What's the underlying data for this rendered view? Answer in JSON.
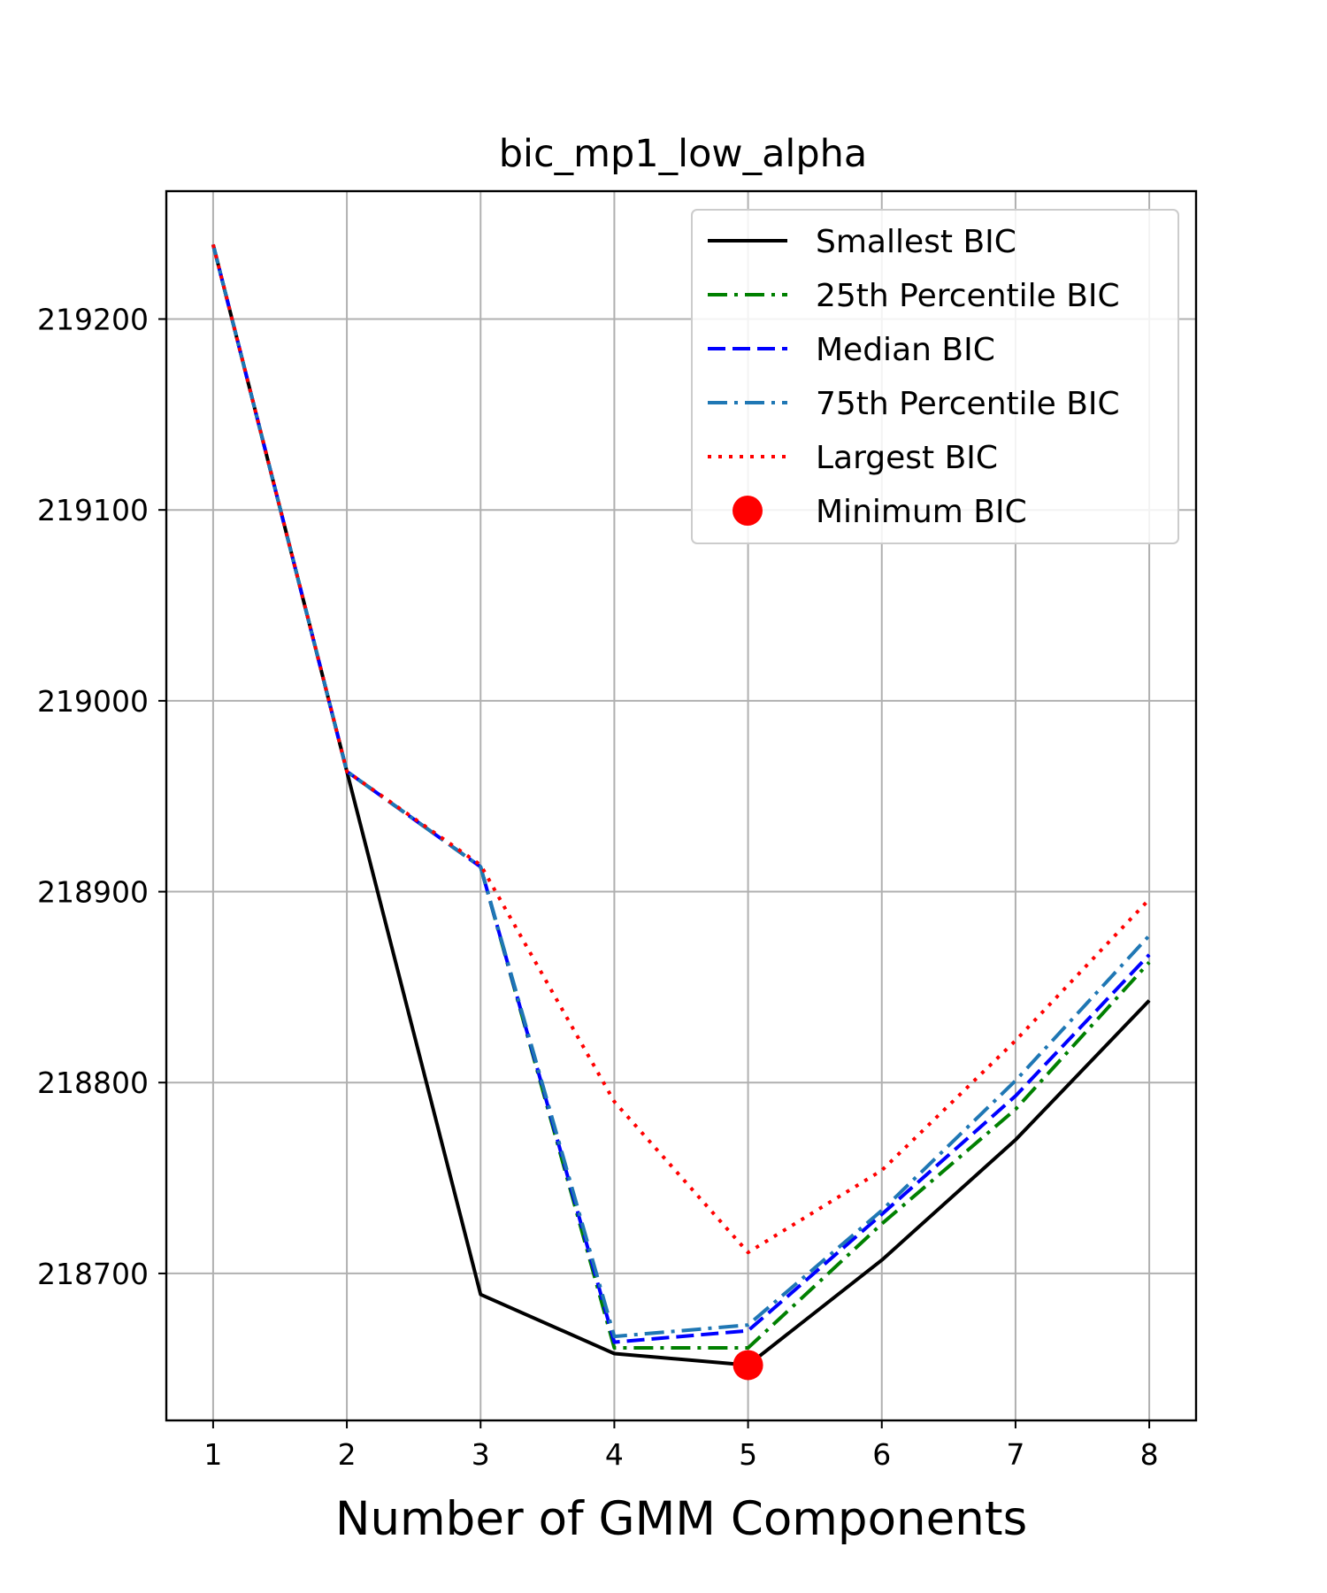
{
  "chart_data": {
    "type": "line",
    "title": "bic_mp1_low_alpha",
    "xlabel": "Number of GMM Components",
    "ylabel": "",
    "x": [
      1,
      2,
      3,
      4,
      5,
      6,
      7,
      8
    ],
    "xticks": [
      "1",
      "2",
      "3",
      "4",
      "5",
      "6",
      "7",
      "8"
    ],
    "yticks": [
      218700,
      218800,
      218900,
      219000,
      219100,
      219200
    ],
    "ytick_labels": [
      "218700",
      "218800",
      "218900",
      "219000",
      "219100",
      "219200"
    ],
    "xlim": [
      0.65,
      8.35
    ],
    "ylim": [
      218623,
      219267
    ],
    "grid": true,
    "legend_position": "top-right",
    "series": [
      {
        "name": "Smallest BIC",
        "color": "#000000",
        "style": "solid",
        "values": [
          219239,
          218963,
          218689,
          218658,
          218652,
          218707,
          218770,
          218843
        ]
      },
      {
        "name": "25th Percentile BIC",
        "color": "#008000",
        "style": "dashdot",
        "values": [
          219239,
          218963,
          218913,
          218661,
          218661,
          218726,
          218786,
          218863
        ]
      },
      {
        "name": "Median BIC",
        "color": "#0000ff",
        "style": "dashed",
        "values": [
          219239,
          218963,
          218913,
          218664,
          218670,
          218731,
          218793,
          218867
        ]
      },
      {
        "name": "75th Percentile BIC",
        "color": "#1f77b4",
        "style": "dashdot",
        "values": [
          219239,
          218963,
          218913,
          218667,
          218673,
          218733,
          218801,
          218877
        ]
      },
      {
        "name": "Largest BIC",
        "color": "#ff0000",
        "style": "dotted",
        "values": [
          219239,
          218963,
          218914,
          218790,
          218711,
          218754,
          218822,
          218896
        ]
      }
    ],
    "minimum_marker": {
      "name": "Minimum BIC",
      "color": "#ff0000",
      "x": 5,
      "y": 218652
    }
  }
}
